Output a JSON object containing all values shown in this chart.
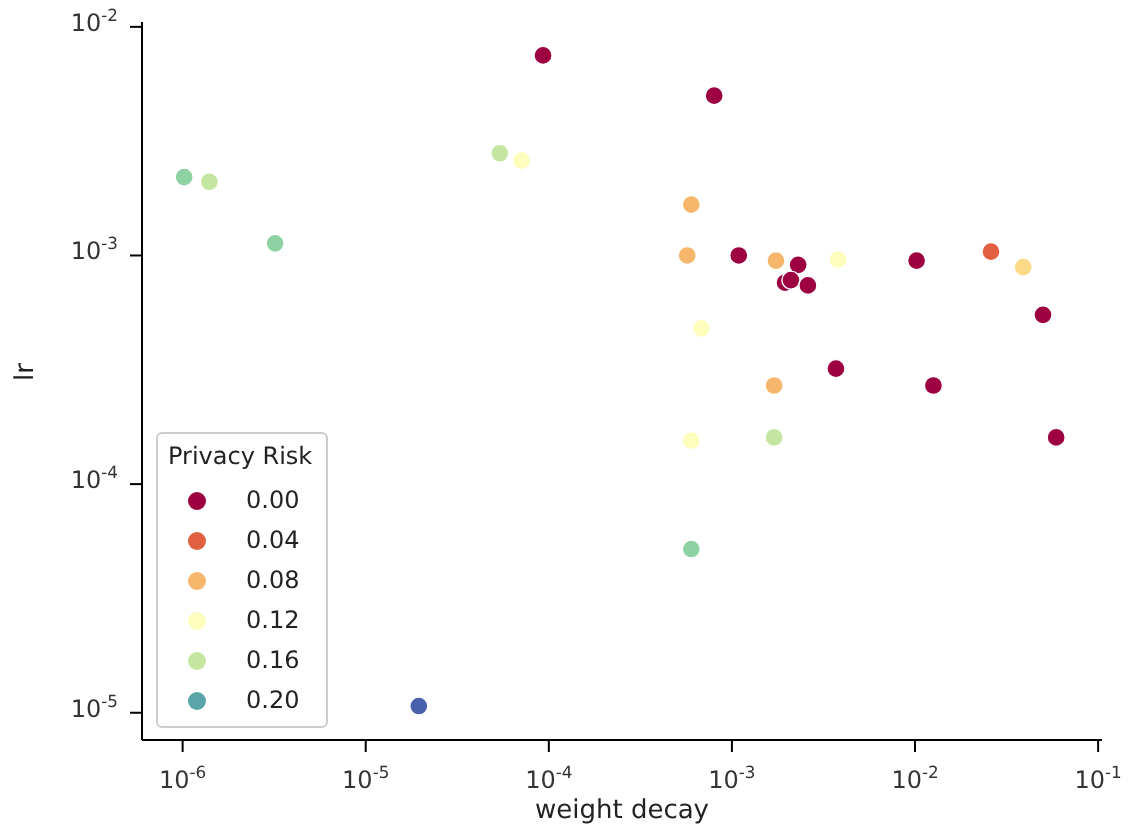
{
  "chart_data": {
    "type": "scatter",
    "xlabel": "weight decay",
    "ylabel": "lr",
    "legend_title": "Privacy Risk",
    "legend": "bottom left",
    "log": "xy",
    "marker": "circle",
    "xlim": [
      6e-07,
      0.105
    ],
    "ylim": [
      7.6e-06,
      0.0105
    ],
    "xticks": [
      {
        "value": 1e-06,
        "label": "10$^{-6}$"
      },
      {
        "value": 1e-05,
        "label": "10$^{-5}$"
      },
      {
        "value": 0.0001,
        "label": "10$^{-4}$"
      },
      {
        "value": 0.001,
        "label": "10$^{-3}$"
      },
      {
        "value": 0.01,
        "label": "10$^{-2}$"
      },
      {
        "value": 0.1,
        "label": "10$^{-1}$"
      }
    ],
    "yticks": [
      {
        "value": 1e-05,
        "label": "10$^{-5}$"
      },
      {
        "value": 0.0001,
        "label": "10$^{-4}$"
      },
      {
        "value": 0.001,
        "label": "10$^{-3}$"
      },
      {
        "value": 0.01,
        "label": "10$^{-2}$"
      }
    ],
    "series": [
      {
        "name": "0.00",
        "color": "#9e0142",
        "x": [
          9.3e-05,
          0.0008,
          0.00109,
          0.0023,
          0.00195,
          0.0021,
          0.0026,
          0.0102,
          0.05,
          0.0037,
          0.0126,
          0.059
        ],
        "values": [
          0.0075,
          0.005,
          0.001,
          0.00091,
          0.00076,
          0.00078,
          0.00074,
          0.00095,
          0.00055,
          0.00032,
          0.00027,
          0.00016
        ]
      },
      {
        "name": "0.04",
        "color": "#e0603f",
        "x": [
          0.026
        ],
        "values": [
          0.00104
        ]
      },
      {
        "name": "0.08",
        "color": "#f6b76c",
        "x": [
          0.00174,
          0.0017,
          0.00057,
          0.0006
        ],
        "values": [
          0.00095,
          0.00027,
          0.001,
          0.00167
        ]
      },
      {
        "name": "0.12",
        "color": "#fdfdbe",
        "x": [
          0.0038,
          0.00068,
          0.0006,
          7.1e-05
        ],
        "values": [
          0.00096,
          0.00048,
          0.000155,
          0.0026
        ]
      },
      {
        "name": "0.16",
        "color": "#c4e6a0",
        "x": [
          1.4e-06,
          5.4e-05,
          0.0017
        ],
        "values": [
          0.0021,
          0.0028,
          0.00016
        ]
      },
      {
        "name": "0.20",
        "color": "#5aa5a9"
      },
      {
        "x": [
          1.02e-06,
          3.2e-06,
          0.0006,
          1.95e-05,
          0.039
        ],
        "values": [
          0.0022,
          0.00113,
          5.2e-05,
          1.07e-05,
          0.00089
        ],
        "colors": [
          "#8ed1a2",
          "#8ed1a2",
          "#8ed1a2",
          "#4a62ad",
          "#fbd987"
        ]
      }
    ]
  }
}
